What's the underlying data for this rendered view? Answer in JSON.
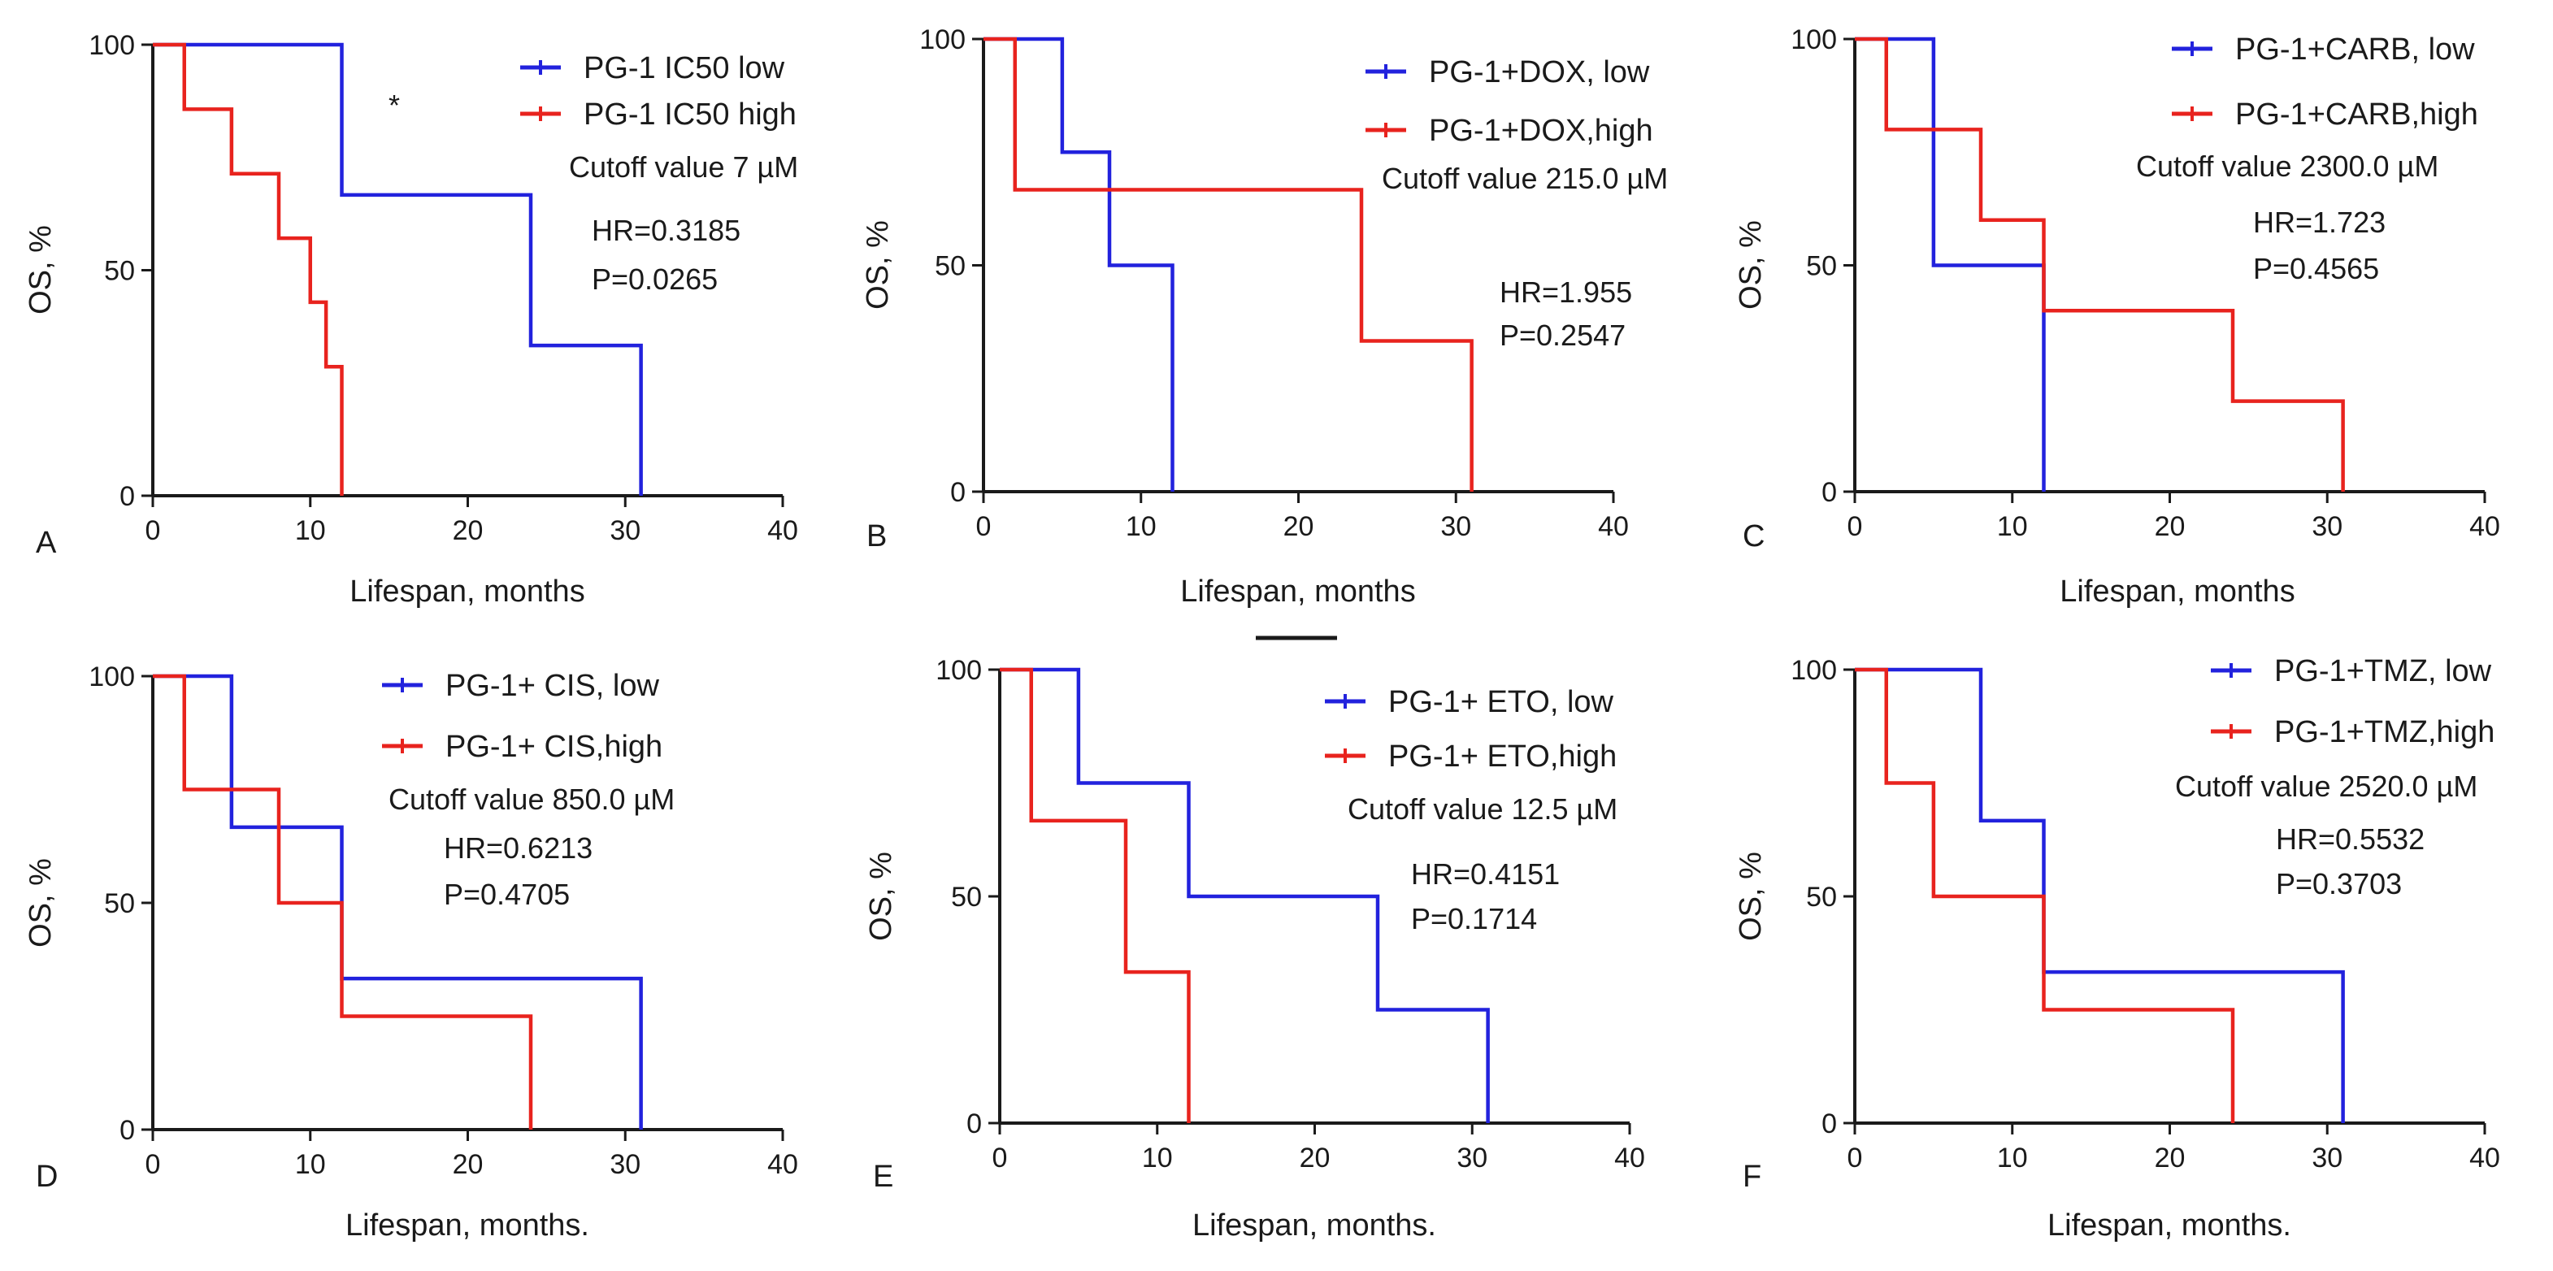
{
  "colors": {
    "low": "#2222dd",
    "high": "#e8231e",
    "axis": "#1a1a1a"
  },
  "chart_data": [
    {
      "type": "line",
      "panel": "A",
      "xlabel": "Lifespan, months",
      "ylabel": "OS, %",
      "xlim": [
        0,
        40
      ],
      "ylim": [
        0,
        100
      ],
      "xticks": [
        0,
        10,
        20,
        30,
        40
      ],
      "yticks": [
        0,
        50,
        100
      ],
      "series": [
        {
          "name": "PG-1 IC50 low",
          "color": "#2222dd",
          "x": [
            0,
            12,
            24,
            31
          ],
          "y": [
            100,
            66.7,
            33.3,
            0
          ]
        },
        {
          "name": "PG-1 IC50 high",
          "color": "#e8231e",
          "x": [
            0,
            2,
            5,
            8,
            10,
            11,
            12
          ],
          "y": [
            100,
            85.7,
            71.4,
            57.1,
            42.9,
            28.6,
            0
          ]
        }
      ],
      "annotations": [
        "Cutoff value 7 µM",
        "HR=0.3185",
        "P=0.0265"
      ],
      "significance": "*"
    },
    {
      "type": "line",
      "panel": "B",
      "xlabel": "Lifespan, months",
      "ylabel": "OS, %",
      "xlim": [
        0,
        40
      ],
      "ylim": [
        0,
        100
      ],
      "xticks": [
        0,
        10,
        20,
        30,
        40
      ],
      "yticks": [
        0,
        50,
        100
      ],
      "series": [
        {
          "name": "PG-1+DOX, low",
          "color": "#2222dd",
          "x": [
            0,
            5,
            8,
            12
          ],
          "y": [
            100,
            75,
            50,
            0
          ]
        },
        {
          "name": "PG-1+DOX,high",
          "color": "#e8231e",
          "x": [
            0,
            2,
            24,
            31
          ],
          "y": [
            100,
            66.7,
            33.3,
            0
          ]
        }
      ],
      "annotations": [
        "Cutoff value 215.0 µM",
        "HR=1.955",
        "P=0.2547"
      ]
    },
    {
      "type": "line",
      "panel": "C",
      "xlabel": "Lifespan, months",
      "ylabel": "OS, %",
      "xlim": [
        0,
        40
      ],
      "ylim": [
        0,
        100
      ],
      "xticks": [
        0,
        10,
        20,
        30,
        40
      ],
      "yticks": [
        0,
        50,
        100
      ],
      "series": [
        {
          "name": "PG-1+CARB, low",
          "color": "#2222dd",
          "x": [
            0,
            5,
            12
          ],
          "y": [
            100,
            50,
            0
          ]
        },
        {
          "name": "PG-1+CARB,high",
          "color": "#e8231e",
          "x": [
            0,
            2,
            8,
            12,
            24,
            31
          ],
          "y": [
            100,
            80,
            60,
            40,
            20,
            0
          ]
        }
      ],
      "annotations": [
        "Cutoff value 2300.0 µM",
        "HR=1.723",
        "P=0.4565"
      ]
    },
    {
      "type": "line",
      "panel": "D",
      "xlabel": "Lifespan, months.",
      "ylabel": "OS, %",
      "xlim": [
        0,
        40
      ],
      "ylim": [
        0,
        100
      ],
      "xticks": [
        0,
        10,
        20,
        30,
        40
      ],
      "yticks": [
        0,
        50,
        100
      ],
      "series": [
        {
          "name": "PG-1+ CIS, low",
          "color": "#2222dd",
          "x": [
            0,
            5,
            12,
            31
          ],
          "y": [
            100,
            66.7,
            33.3,
            0
          ]
        },
        {
          "name": "PG-1+ CIS,high",
          "color": "#e8231e",
          "x": [
            0,
            2,
            8,
            12,
            24
          ],
          "y": [
            100,
            75,
            50,
            25,
            0
          ]
        }
      ],
      "annotations": [
        "Cutoff value 850.0 µM",
        "HR=0.6213",
        "P=0.4705"
      ]
    },
    {
      "type": "line",
      "panel": "E",
      "xlabel": "Lifespan, months.",
      "ylabel": "OS, %",
      "xlim": [
        0,
        40
      ],
      "ylim": [
        0,
        100
      ],
      "xticks": [
        0,
        10,
        20,
        30,
        40
      ],
      "yticks": [
        0,
        50,
        100
      ],
      "series": [
        {
          "name": "PG-1+ ETO, low",
          "color": "#2222dd",
          "x": [
            0,
            5,
            12,
            24,
            31
          ],
          "y": [
            100,
            75,
            50,
            25,
            0
          ]
        },
        {
          "name": "PG-1+ ETO,high",
          "color": "#e8231e",
          "x": [
            0,
            2,
            8,
            12
          ],
          "y": [
            100,
            66.7,
            33.3,
            0
          ]
        }
      ],
      "annotations": [
        "Cutoff value 12.5 µM",
        "HR=0.4151",
        "P=0.1714"
      ]
    },
    {
      "type": "line",
      "panel": "F",
      "xlabel": "Lifespan, months.",
      "ylabel": "OS, %",
      "xlim": [
        0,
        40
      ],
      "ylim": [
        0,
        100
      ],
      "xticks": [
        0,
        10,
        20,
        30,
        40
      ],
      "yticks": [
        0,
        50,
        100
      ],
      "series": [
        {
          "name": "PG-1+TMZ, low",
          "color": "#2222dd",
          "x": [
            0,
            8,
            12,
            31
          ],
          "y": [
            100,
            66.7,
            33.3,
            0
          ]
        },
        {
          "name": "PG-1+TMZ,high",
          "color": "#e8231e",
          "x": [
            0,
            2,
            5,
            12,
            24
          ],
          "y": [
            100,
            75,
            50,
            25,
            0
          ]
        }
      ],
      "annotations": [
        "Cutoff value 2520.0 µM",
        "HR=0.5532",
        "P=0.3703"
      ]
    }
  ]
}
